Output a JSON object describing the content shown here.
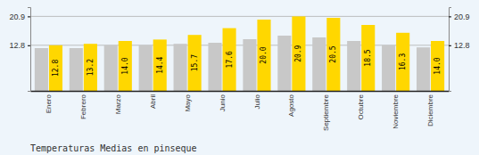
{
  "chart_data": {
    "type": "bar",
    "title": "Temperaturas Medias en pinseque",
    "categories": [
      "Enero",
      "Febrero",
      "Marzo",
      "Abril",
      "Mayo",
      "Junio",
      "Julio",
      "Agosto",
      "Septiembre",
      "Octubre",
      "Noviembre",
      "Diciembre"
    ],
    "series": [
      {
        "color": "#C8C8C8",
        "values": [
          12.0,
          12.0,
          12.8,
          12.8,
          13.2,
          13.5,
          14.5,
          15.5,
          15.0,
          14.0,
          12.8,
          12.2
        ]
      },
      {
        "color": "#FFD700",
        "data_labels": true,
        "values": [
          12.8,
          13.2,
          14.0,
          14.4,
          15.7,
          17.6,
          20.0,
          20.9,
          20.5,
          18.5,
          16.3,
          14.0
        ],
        "value_labels": [
          "12.8",
          "13.2",
          "14.0",
          "14.4",
          "15.7",
          "17.6",
          "20.0",
          "20.9",
          "20.5",
          "18.5",
          "16.3",
          "14.0"
        ]
      }
    ],
    "ylim": [
      0,
      23.5
    ],
    "yticks": [
      12.8,
      20.9
    ],
    "y2lim": [
      0,
      23.5
    ],
    "y2ticks": [
      12.8,
      20.9
    ],
    "grid": true
  }
}
